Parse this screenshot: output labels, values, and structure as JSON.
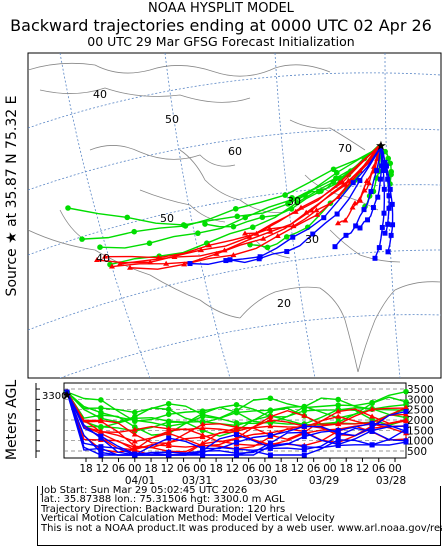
{
  "header": {
    "line1": "NOAA HYSPLIT MODEL",
    "line2": "Backward trajectories ending at 0000 UTC 02 Apr 26",
    "line3": "00 UTC 29 Mar    GFSG  Forecast Initialization"
  },
  "side_label": "Source ★ at    35.87 N    75.32 E",
  "vertical_axis_label": "Meters AGL",
  "map": {
    "latitude_labels": [
      "40",
      "50",
      "60",
      "70",
      "30",
      "20"
    ],
    "longitude_labels": [
      "50",
      "40",
      "30"
    ],
    "source_marker": "star-icon"
  },
  "vertical_panel": {
    "source_height_label": "3300",
    "right_axis_ticks": [
      "3500",
      "3000",
      "2500",
      "2000",
      "1500",
      "1000",
      "500"
    ],
    "time_ticks": [
      "18",
      "12",
      "06",
      "00",
      "18",
      "12",
      "06",
      "00",
      "18",
      "12",
      "06",
      "00",
      "18",
      "12",
      "06",
      "00",
      "18",
      "12",
      "06",
      "00"
    ],
    "date_labels": [
      "04/01",
      "03/31",
      "03/30",
      "03/29",
      "03/28"
    ]
  },
  "footer": {
    "line1": "Job Start: Sun Mar 29 05:02:45 UTC 2026",
    "line2": "lat.: 35.87388   lon.: 75.31506   hgt: 3300.0 m AGL",
    "line3": "Trajectory Direction: Backward        Duration: 120 hrs",
    "line4": "Vertical Motion Calculation Method: Model Vertical Velocity",
    "line5": "This is not a NOAA product.It was produced by a web user. www.arl.noaa.gov/ready"
  },
  "colors": {
    "series_red": "#ff0000",
    "series_blue": "#0000ff",
    "series_green": "#00dd00",
    "grid": "#5b87c6",
    "map_lines": "#888888"
  }
}
